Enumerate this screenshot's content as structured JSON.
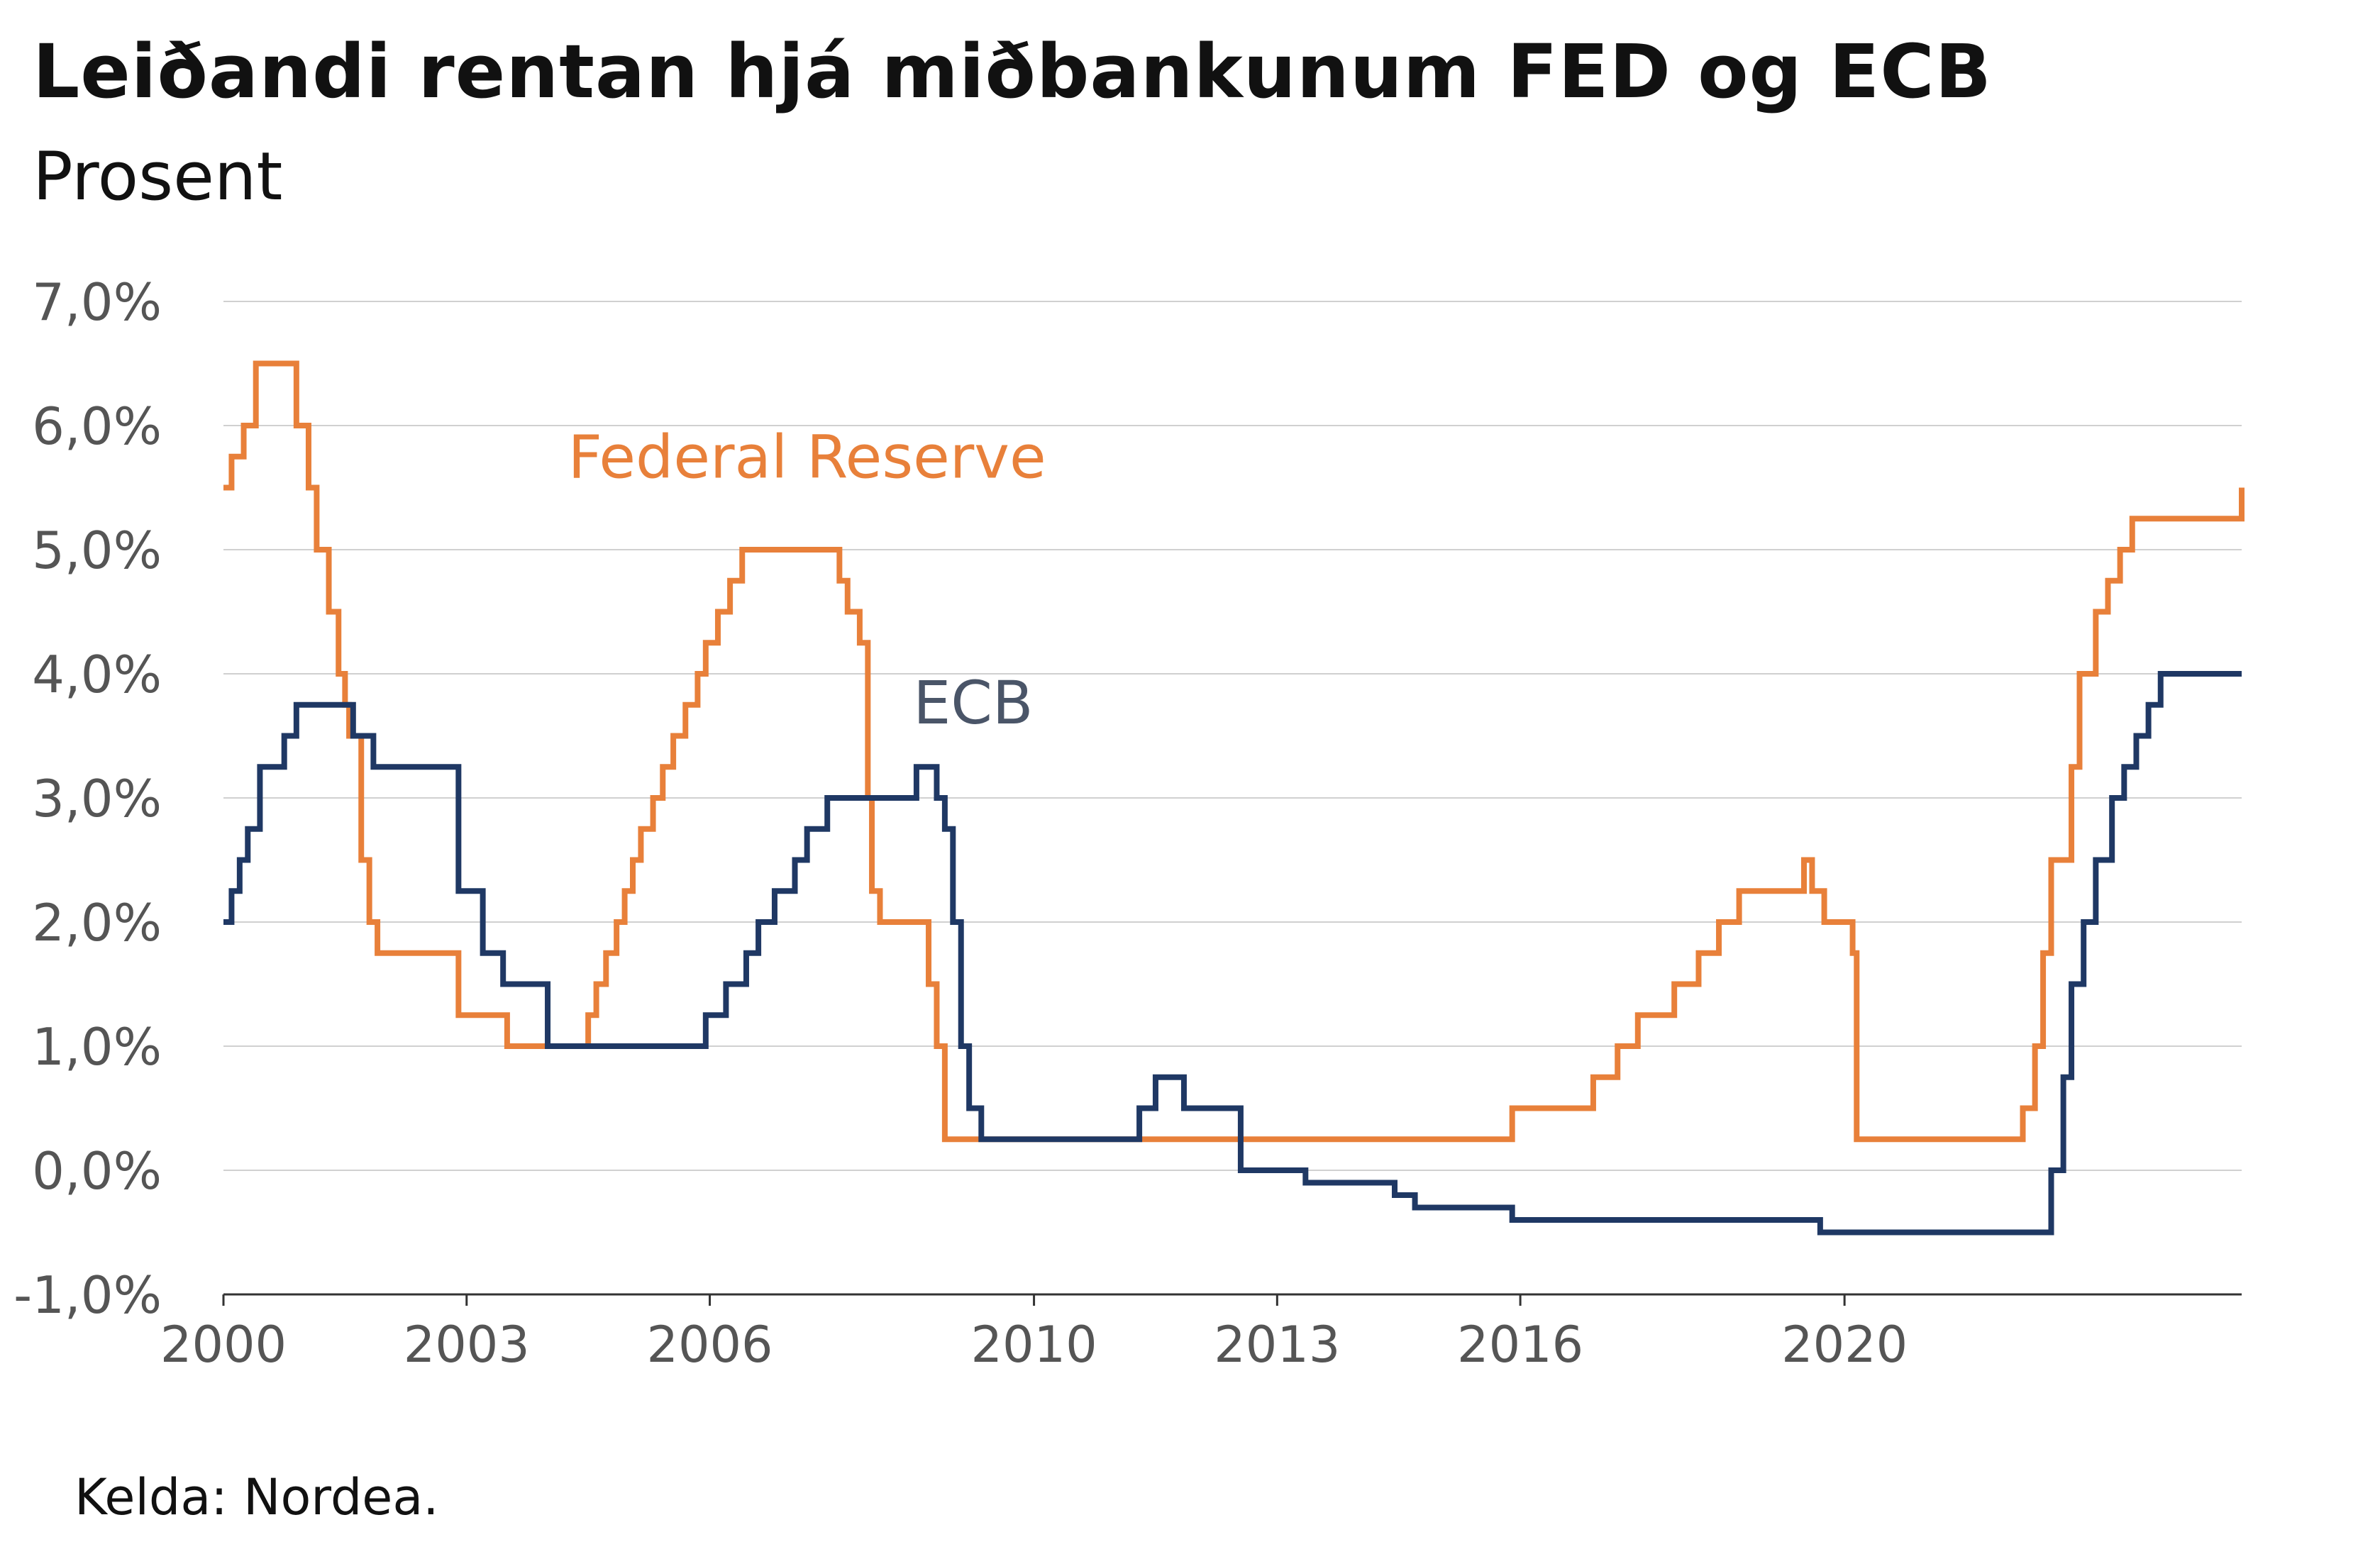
{
  "title": "Leiðandi rentan hjá miðbankunum FED og ECB",
  "subtitle": "Prosent",
  "source": "Kelda: Nordea.",
  "chart_data": {
    "type": "line",
    "step": true,
    "title": "Leiðandi rentan hjá miðbankunum FED og ECB",
    "subtitle": "Prosent",
    "xlabel": "",
    "ylabel": "",
    "xlim": [
      2000,
      2024.9
    ],
    "ylim": [
      -1,
      7
    ],
    "x_ticks": [
      2000,
      2003,
      2006,
      2010,
      2013,
      2016,
      2020
    ],
    "x_tick_labels": [
      "2000",
      "2003",
      "2006",
      "2010",
      "2013",
      "2016",
      "2020"
    ],
    "y_ticks": [
      -1,
      0,
      1,
      2,
      3,
      4,
      5,
      6,
      7
    ],
    "y_tick_labels": [
      "-1,0%",
      "0,0%",
      "1,0%",
      "2,0%",
      "3,0%",
      "4,0%",
      "5,0%",
      "6,0%",
      "7,0%"
    ],
    "grid": "horizontal",
    "series": [
      {
        "name": "Federal Reserve",
        "color": "#E8803A",
        "x": [
          2000,
          2000.1,
          2000.25,
          2000.4,
          2000.9,
          2001.05,
          2001.15,
          2001.3,
          2001.42,
          2001.5,
          2001.55,
          2001.7,
          2001.8,
          2001.9,
          2002.9,
          2003.5,
          2004.5,
          2004.6,
          2004.72,
          2004.85,
          2004.95,
          2005.05,
          2005.15,
          2005.3,
          2005.42,
          2005.55,
          2005.7,
          2005.85,
          2005.95,
          2006.1,
          2006.25,
          2006.4,
          2007.6,
          2007.7,
          2007.85,
          2007.95,
          2008.0,
          2008.1,
          2008.3,
          2008.7,
          2008.8,
          2008.9,
          2015.9,
          2016.9,
          2017.2,
          2017.45,
          2017.9,
          2018.2,
          2018.45,
          2018.7,
          2019.5,
          2019.6,
          2019.75,
          2020.1,
          2020.15,
          2022.2,
          2022.35,
          2022.45,
          2022.55,
          2022.8,
          2022.9,
          2023.1,
          2023.25,
          2023.4,
          2023.55,
          2024.9
        ],
        "values": [
          5.5,
          5.75,
          6.0,
          6.5,
          6.0,
          5.5,
          5.0,
          4.5,
          4.0,
          3.75,
          3.5,
          2.5,
          2.0,
          1.75,
          1.25,
          1.0,
          1.25,
          1.5,
          1.75,
          2.0,
          2.25,
          2.5,
          2.75,
          3.0,
          3.25,
          3.5,
          3.75,
          4.0,
          4.25,
          4.5,
          4.75,
          5.0,
          4.75,
          4.5,
          4.25,
          3.0,
          2.25,
          2.0,
          2.0,
          1.5,
          1.0,
          0.25,
          0.5,
          0.75,
          1.0,
          1.25,
          1.5,
          1.75,
          2.0,
          2.25,
          2.5,
          2.25,
          2.0,
          1.75,
          0.25,
          0.5,
          1.0,
          1.75,
          2.5,
          3.25,
          4.0,
          4.5,
          4.75,
          5.0,
          5.25,
          5.5
        ]
      },
      {
        "name": "ECB",
        "color": "#1F3864",
        "x": [
          2000,
          2000.1,
          2000.2,
          2000.3,
          2000.45,
          2000.75,
          2000.9,
          2001.6,
          2001.85,
          2002.9,
          2003.2,
          2003.45,
          2004.0,
          2005.95,
          2006.2,
          2006.45,
          2006.6,
          2006.8,
          2007.05,
          2007.2,
          2007.45,
          2008.55,
          2008.8,
          2008.9,
          2009.0,
          2009.1,
          2009.2,
          2009.35,
          2011.3,
          2011.5,
          2011.85,
          2012.55,
          2013.0,
          2013.35,
          2014.45,
          2014.7,
          2015.9,
          2016.2,
          2019.7,
          2022.55,
          2022.7,
          2022.8,
          2022.95,
          2023.1,
          2023.3,
          2023.45,
          2023.6,
          2023.75,
          2023.9,
          2024.9
        ],
        "values": [
          2.0,
          2.25,
          2.5,
          2.75,
          3.25,
          3.5,
          3.75,
          3.5,
          3.25,
          2.25,
          1.75,
          1.5,
          1.0,
          1.25,
          1.5,
          1.75,
          2.0,
          2.25,
          2.5,
          2.75,
          3.0,
          3.25,
          3.0,
          2.75,
          2.0,
          1.0,
          0.5,
          0.25,
          0.5,
          0.75,
          0.5,
          0.0,
          0.0,
          -0.1,
          -0.2,
          -0.3,
          -0.4,
          -0.4,
          -0.5,
          0.0,
          0.75,
          1.5,
          2.0,
          2.5,
          3.0,
          3.25,
          3.5,
          3.75,
          4.0,
          4.0
        ]
      }
    ],
    "annotations": [
      {
        "text": "Federal Reserve",
        "x": 2007.2,
        "y": 5.58,
        "color": "#E8803A"
      },
      {
        "text": "ECB",
        "x": 2009.25,
        "y": 3.6,
        "color": "#4A5568"
      }
    ]
  }
}
